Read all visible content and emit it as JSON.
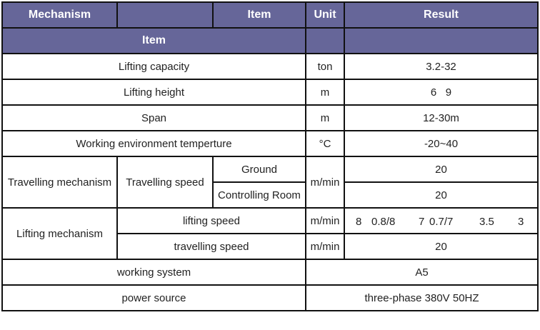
{
  "header": {
    "mechanism": "Mechanism",
    "item": "Item",
    "unit": "Unit",
    "result": "Result",
    "sub_item": "Item"
  },
  "rows": [
    {
      "item": "Lifting capacity",
      "unit": "ton",
      "result": "3.2-32"
    },
    {
      "item": "Lifting height",
      "unit": "m",
      "result": "6   9"
    },
    {
      "item": "Span",
      "unit": "m",
      "result": "12-30m"
    },
    {
      "item": "Working environment temperture",
      "unit": "°C",
      "result": "-20~40"
    }
  ],
  "travelling": {
    "mechanism": "Travelling mechanism",
    "item": "Travelling speed",
    "unit": "m/min",
    "ground": {
      "label": "Ground",
      "result": "20"
    },
    "room": {
      "label": "Controlling Room",
      "result": "20"
    }
  },
  "lifting": {
    "mechanism": "Lifting mechanism",
    "lifting_speed": {
      "label": "lifting speed",
      "unit": "m/min",
      "values": [
        "8",
        "0.8/8",
        "7",
        "0.7/7",
        "3.5",
        "3"
      ]
    },
    "travelling_speed": {
      "label": "travelling speed",
      "unit": "m/min",
      "result": "20"
    }
  },
  "working_system": {
    "label": "working system",
    "result": "A5"
  },
  "power_source": {
    "label": "power source",
    "result": "three-phase 380V 50HZ"
  },
  "colors": {
    "header_bg": "#666699",
    "header_text": "#ffffff"
  }
}
